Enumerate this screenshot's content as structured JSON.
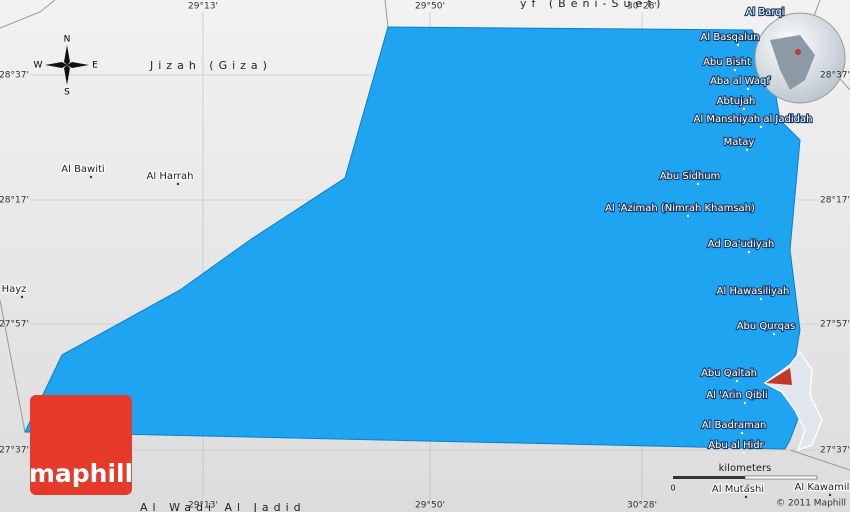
{
  "map": {
    "coordinates": {
      "top": [
        "29°13'",
        "29°50'",
        "30°28'"
      ],
      "bottom": [
        "29°13'",
        "29°50'",
        "30°28'"
      ],
      "left": [
        "28°37'",
        "28°17'",
        "27°57'",
        "27°37'"
      ],
      "right": [
        "28°37'",
        "28°17'",
        "27°57'",
        "27°37'"
      ]
    },
    "regions": [
      "Jizah (Giza)",
      "yf (Beni-Suef)",
      "Al Wadi Al Jadid"
    ],
    "places": [
      "Al Barqi",
      "Al Basqalun",
      "Abu Bisht",
      "Aba al Waqf",
      "Abtujah",
      "Al Manshiyah al Jadidah",
      "Matay",
      "Abu Sidhum",
      "Al 'Azimah (Nimrah Khamsah)",
      "Ad Da'udiyah",
      "Al Hawasiliyah",
      "Abu Qurqas",
      "Abu Qaltah",
      "Al 'Arin Qibli",
      "Al Badraman",
      "Abu al Hidr",
      "Al Mutashi",
      "Al Kawamil",
      "Al Bawiti",
      "Al Harrah",
      "Hayz"
    ],
    "compass": {
      "north": "N",
      "south": "S",
      "west": "W",
      "east": "E"
    },
    "scale": {
      "unit": "kilometers",
      "ticks": [
        "0",
        "20",
        "40"
      ]
    },
    "copyright": "© 2011 Maphill",
    "logo": "maphill"
  }
}
